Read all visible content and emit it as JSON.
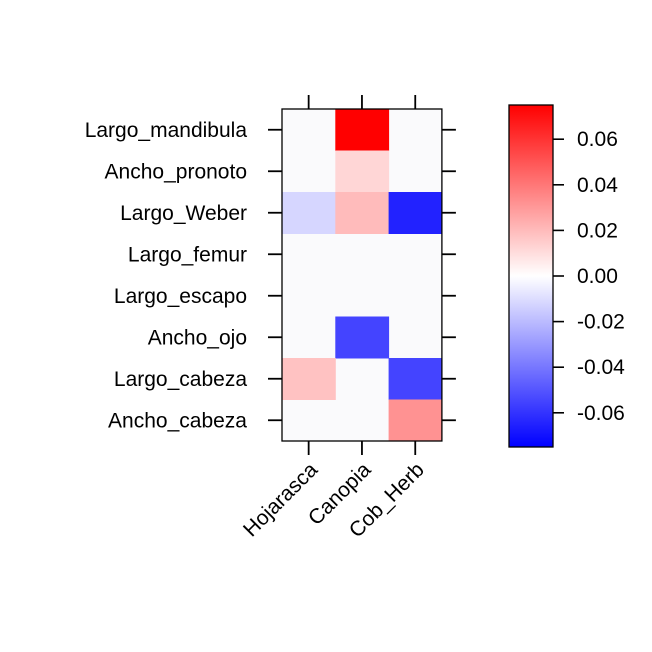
{
  "chart_data": {
    "type": "heatmap",
    "title": "",
    "xlabel": "",
    "ylabel": "",
    "columns": [
      "Hojarasca",
      "Canopia",
      "Cob_Herb"
    ],
    "rows": [
      "Largo_mandibula",
      "Ancho_pronoto",
      "Largo_Weber",
      "Largo_femur",
      "Largo_escapo",
      "Ancho_ojo",
      "Largo_cabeza",
      "Ancho_cabeza"
    ],
    "values": [
      [
        0.0,
        0.075,
        0.0
      ],
      [
        0.0,
        0.012,
        0.0
      ],
      [
        -0.012,
        0.02,
        -0.065
      ],
      [
        0.0,
        0.0,
        0.0
      ],
      [
        0.0,
        0.0,
        0.0
      ],
      [
        0.0,
        -0.055,
        0.0
      ],
      [
        0.018,
        0.0,
        -0.055
      ],
      [
        0.0,
        0.0,
        0.032
      ]
    ],
    "colorbar": {
      "min": -0.075,
      "max": 0.075,
      "ticks": [
        -0.06,
        -0.04,
        -0.02,
        0.0,
        0.02,
        0.04,
        0.06
      ],
      "tick_labels": [
        "-0.06",
        "-0.04",
        "-0.02",
        "0.00",
        "0.02",
        "0.04",
        "0.06"
      ],
      "colors": {
        "low": "#0000ff",
        "mid": "#ffffff",
        "high": "#ff0000"
      }
    },
    "background_color": "#fafafc",
    "grid": false
  }
}
